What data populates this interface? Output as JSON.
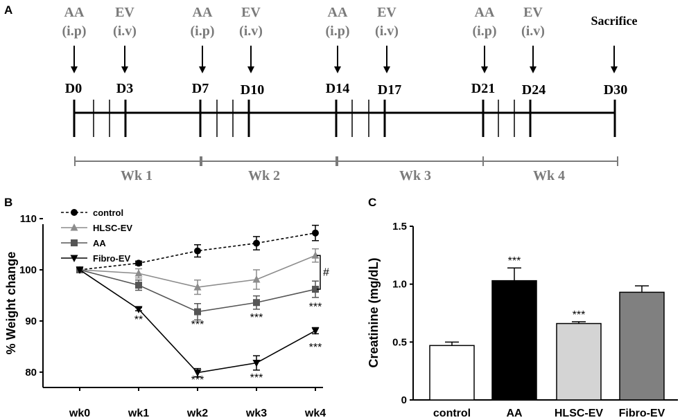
{
  "panels": {
    "a": "A",
    "b": "B",
    "c": "C"
  },
  "timeline": {
    "aa_label": "AA",
    "aa_route": "(i.p)",
    "ev_label": "EV",
    "ev_route": "(i.v)",
    "sacrifice": "Sacrifice",
    "days": [
      "D0",
      "D3",
      "D7",
      "D10",
      "D14",
      "D17",
      "D21",
      "D24",
      "D30"
    ],
    "weeks": [
      "Wk 1",
      "Wk 2",
      "Wk 3",
      "Wk 4"
    ]
  },
  "chart_data": [
    {
      "type": "line",
      "ylabel": "% Weight change",
      "categories": [
        "wk0",
        "wk1",
        "wk2",
        "wk3",
        "wk4"
      ],
      "ylim": [
        77,
        110
      ],
      "yticks": [
        80,
        90,
        100,
        110
      ],
      "series": [
        {
          "name": "control",
          "values": [
            100,
            101.3,
            103.7,
            105.2,
            107.2
          ],
          "errors": [
            0,
            0.4,
            1.2,
            1.3,
            1.5
          ],
          "color": "#000000",
          "marker": "circle",
          "dash": true
        },
        {
          "name": "HLSC-EV",
          "values": [
            100,
            99.3,
            96.6,
            98.1,
            102.8
          ],
          "errors": [
            0,
            0.9,
            1.4,
            1.9,
            1.3
          ],
          "color": "#8c8c8c",
          "marker": "triangle-up",
          "dash": false
        },
        {
          "name": "AA",
          "values": [
            100,
            97.0,
            91.8,
            93.6,
            96.2
          ],
          "errors": [
            0,
            1.0,
            1.6,
            1.3,
            1.6
          ],
          "color": "#555555",
          "marker": "square",
          "dash": false
        },
        {
          "name": "Fibro-EV",
          "values": [
            100,
            92.3,
            79.9,
            81.8,
            88.1
          ],
          "errors": [
            0,
            0.3,
            0.8,
            1.4,
            0.6
          ],
          "color": "#000000",
          "marker": "triangle-down",
          "dash": false
        }
      ],
      "annotations": [
        {
          "text": "**",
          "category": "wk1",
          "y": 89.6
        },
        {
          "text": "***",
          "category": "wk2",
          "y": 88.6
        },
        {
          "text": "***",
          "category": "wk3",
          "y": 90.0
        },
        {
          "text": "***",
          "category": "wk4",
          "y": 92.1
        },
        {
          "text": "***",
          "category": "wk2",
          "y": 77.8
        },
        {
          "text": "***",
          "category": "wk3",
          "y": 78.2
        },
        {
          "text": "***",
          "category": "wk4",
          "y": 84.2
        }
      ],
      "bracket": {
        "text": "#",
        "from": 102.8,
        "to": 96.2
      }
    },
    {
      "type": "bar",
      "ylabel": "Creatinine (mg/dL)",
      "categories": [
        "control",
        "AA",
        "HLSC-EV",
        "Fibro-EV"
      ],
      "values": [
        0.47,
        1.03,
        0.66,
        0.93
      ],
      "errors": [
        0.03,
        0.11,
        0.015,
        0.055
      ],
      "colors": [
        "#ffffff",
        "#000000",
        "#d4d4d4",
        "#808080"
      ],
      "ylim": [
        0,
        1.5
      ],
      "yticks": [
        "0",
        "0.5",
        "1.0",
        "1.5"
      ],
      "annotations": [
        {
          "text": "***",
          "category": "AA"
        },
        {
          "text": "***",
          "category": "HLSC-EV"
        }
      ]
    }
  ]
}
